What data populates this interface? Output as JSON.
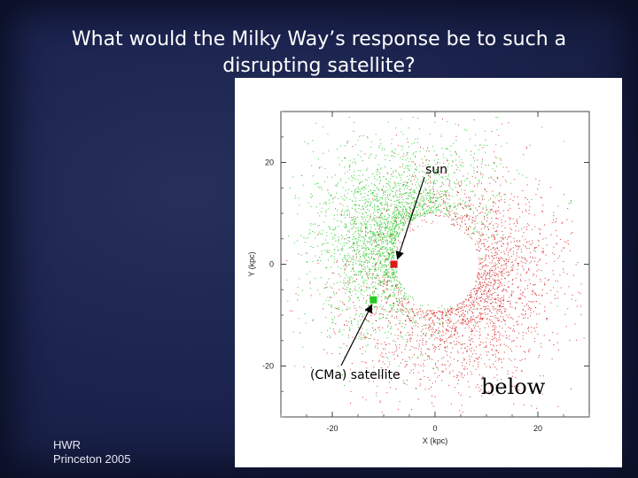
{
  "slide": {
    "title_line1": "What would the Milky Way’s response be to such a",
    "title_line2": "disrupting satellite?",
    "footer_line1": "HWR",
    "footer_line2": "Princeton  2005",
    "overlay_word": "below"
  },
  "chart_data": {
    "type": "scatter",
    "title": "",
    "xlabel": "X (kpc)",
    "ylabel": "Y (kpc)",
    "xlim": [
      -30,
      30
    ],
    "ylim": [
      -30,
      30
    ],
    "xticks": [
      -20,
      0,
      20
    ],
    "yticks": [
      20,
      0,
      -20
    ],
    "series": [
      {
        "color": "#2ecc2e"
      },
      {
        "color": "#d83030"
      }
    ],
    "markers": [
      {
        "label": "sun",
        "x": -8,
        "y": 0,
        "color": "#e01818"
      },
      {
        "label": "(CMa) satellite",
        "x": -12,
        "y": -7,
        "color": "#22cc22"
      }
    ],
    "hole_center": [
      0,
      0
    ],
    "hole_radius_kpc": 8
  }
}
